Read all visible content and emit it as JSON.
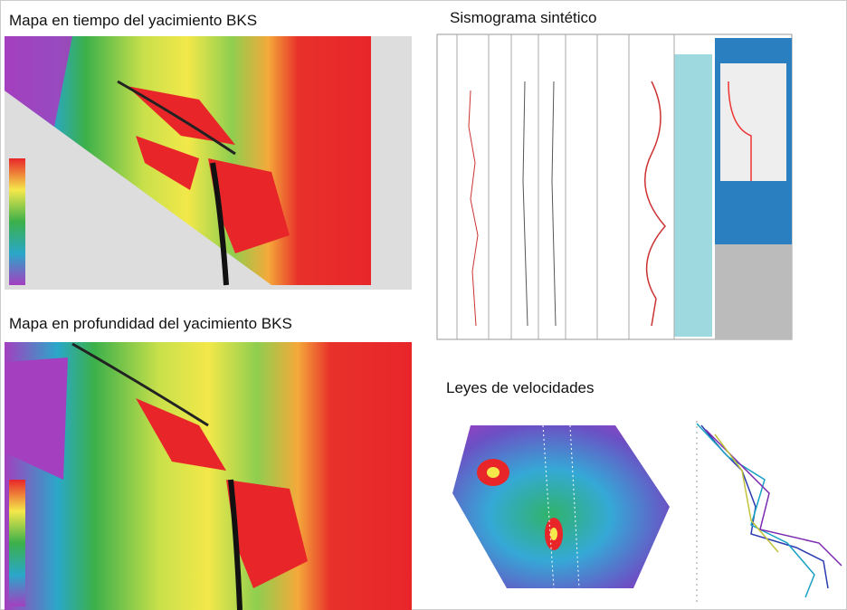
{
  "panels": [
    {
      "title": "Mapa en tiempo del yacimiento BKS"
    },
    {
      "title": "Sismograma sintético"
    },
    {
      "title": "Mapa en profundidad del yacimiento BKS"
    },
    {
      "title": "Leyes de velocidades"
    }
  ]
}
